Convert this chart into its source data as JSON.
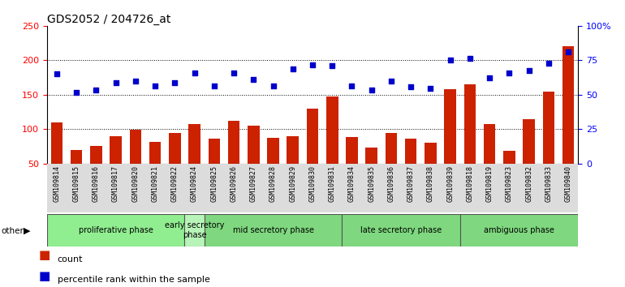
{
  "title": "GDS2052 / 204726_at",
  "samples": [
    "GSM109814",
    "GSM109815",
    "GSM109816",
    "GSM109817",
    "GSM109820",
    "GSM109821",
    "GSM109822",
    "GSM109824",
    "GSM109825",
    "GSM109826",
    "GSM109827",
    "GSM109828",
    "GSM109829",
    "GSM109830",
    "GSM109831",
    "GSM109834",
    "GSM109835",
    "GSM109836",
    "GSM109837",
    "GSM109838",
    "GSM109839",
    "GSM109818",
    "GSM109819",
    "GSM109823",
    "GSM109832",
    "GSM109833",
    "GSM109840"
  ],
  "counts": [
    110,
    70,
    76,
    90,
    99,
    82,
    94,
    108,
    86,
    112,
    105,
    87,
    90,
    130,
    148,
    88,
    73,
    95,
    86,
    80,
    158,
    165,
    108,
    68,
    114,
    155,
    220
  ],
  "percentiles": [
    180,
    153,
    157,
    167,
    170,
    163,
    168,
    182,
    163,
    182,
    172,
    163,
    187,
    193,
    192,
    163,
    157,
    170,
    161,
    159,
    200,
    203,
    175,
    182,
    185,
    196,
    212
  ],
  "phases": [
    {
      "label": "proliferative phase",
      "start": 0,
      "end": 7,
      "color": "#90EE90"
    },
    {
      "label": "early secretory\nphase",
      "start": 7,
      "end": 8,
      "color": "#98FB98"
    },
    {
      "label": "mid secretory phase",
      "start": 8,
      "end": 15,
      "color": "#90EE90"
    },
    {
      "label": "late secretory phase",
      "start": 15,
      "end": 21,
      "color": "#90EE90"
    },
    {
      "label": "ambiguous phase",
      "start": 21,
      "end": 27,
      "color": "#90EE90"
    }
  ],
  "ylim_left": [
    50,
    250
  ],
  "ylim_right": [
    0,
    100
  ],
  "yticks_left": [
    50,
    100,
    150,
    200,
    250
  ],
  "yticks_right": [
    0,
    25,
    50,
    75,
    100
  ],
  "ytick_labels_right": [
    "0",
    "25",
    "50",
    "75",
    "100%"
  ],
  "bar_color": "#CC2200",
  "dot_color": "#0000CC",
  "background_color": "#F0F0F0",
  "plot_bg_color": "#FFFFFF",
  "grid_color": "#000000",
  "other_label": "other",
  "legend_count_label": "count",
  "legend_percentile_label": "percentile rank within the sample"
}
